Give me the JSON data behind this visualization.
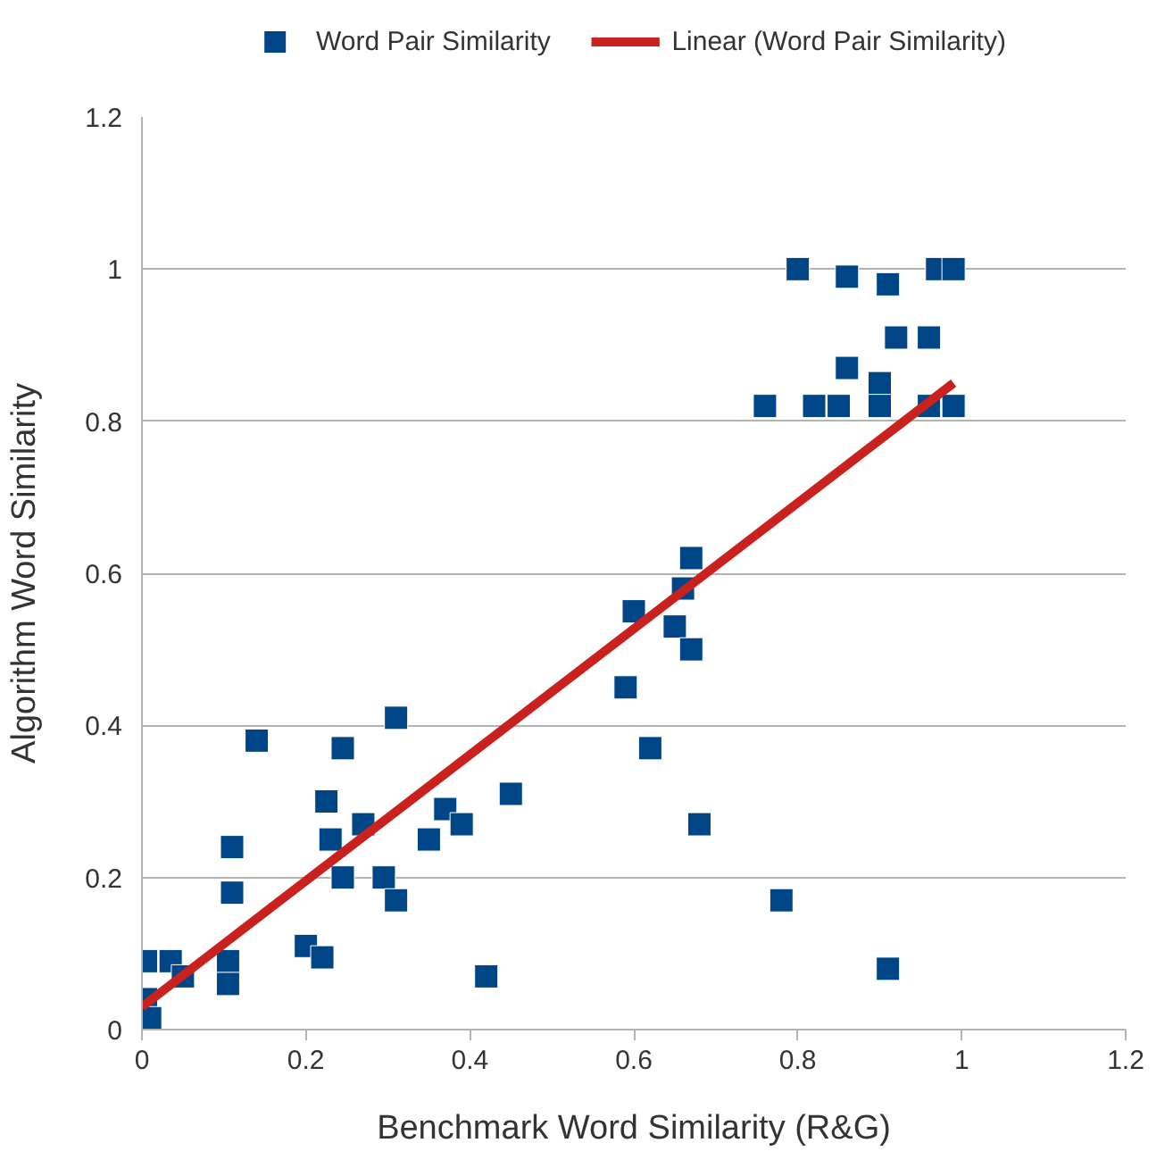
{
  "chart_data": {
    "type": "scatter",
    "xlabel": "Benchmark Word Similarity (R&G)",
    "ylabel": "Algorithm Word Similarity",
    "xlim": [
      0,
      1.2
    ],
    "ylim": [
      0,
      1.2
    ],
    "xticks": [
      0,
      0.2,
      0.4,
      0.6,
      0.8,
      1,
      1.2
    ],
    "yticks": [
      0,
      0.2,
      0.4,
      0.6,
      0.8,
      1,
      1.2
    ],
    "grid": "y",
    "legend": "top",
    "marker": "square",
    "series": [
      {
        "name": "Word Pair Similarity",
        "color": "#004586",
        "x": [
          0.005,
          0.005,
          0.01,
          0.035,
          0.05,
          0.105,
          0.105,
          0.11,
          0.11,
          0.14,
          0.2,
          0.22,
          0.225,
          0.23,
          0.245,
          0.245,
          0.27,
          0.31,
          0.295,
          0.31,
          0.35,
          0.37,
          0.39,
          0.42,
          0.45,
          0.67,
          0.66,
          0.6,
          0.65,
          0.67,
          0.59,
          0.62,
          0.68,
          0.78,
          0.91,
          0.8,
          0.86,
          0.91,
          0.97,
          0.99,
          0.92,
          0.96,
          0.86,
          0.9,
          0.76,
          0.82,
          0.85,
          0.9,
          0.96,
          0.99
        ],
        "values": [
          0.09,
          0.04,
          0.015,
          0.09,
          0.07,
          0.09,
          0.06,
          0.18,
          0.24,
          0.38,
          0.11,
          0.095,
          0.3,
          0.25,
          0.2,
          0.37,
          0.27,
          0.41,
          0.2,
          0.17,
          0.25,
          0.29,
          0.27,
          0.07,
          0.31,
          0.62,
          0.58,
          0.55,
          0.53,
          0.5,
          0.45,
          0.37,
          0.27,
          0.17,
          0.08,
          1.0,
          0.99,
          0.98,
          1.0,
          1.0,
          0.91,
          0.91,
          0.87,
          0.85,
          0.82,
          0.82,
          0.82,
          0.82,
          0.82,
          0.82
        ]
      },
      {
        "name": "Linear (Word Pair Similarity)",
        "color": "#c9211e",
        "type": "line",
        "marker": "none",
        "x": [
          0.0,
          0.99
        ],
        "values": [
          0.03,
          0.85
        ]
      }
    ]
  }
}
